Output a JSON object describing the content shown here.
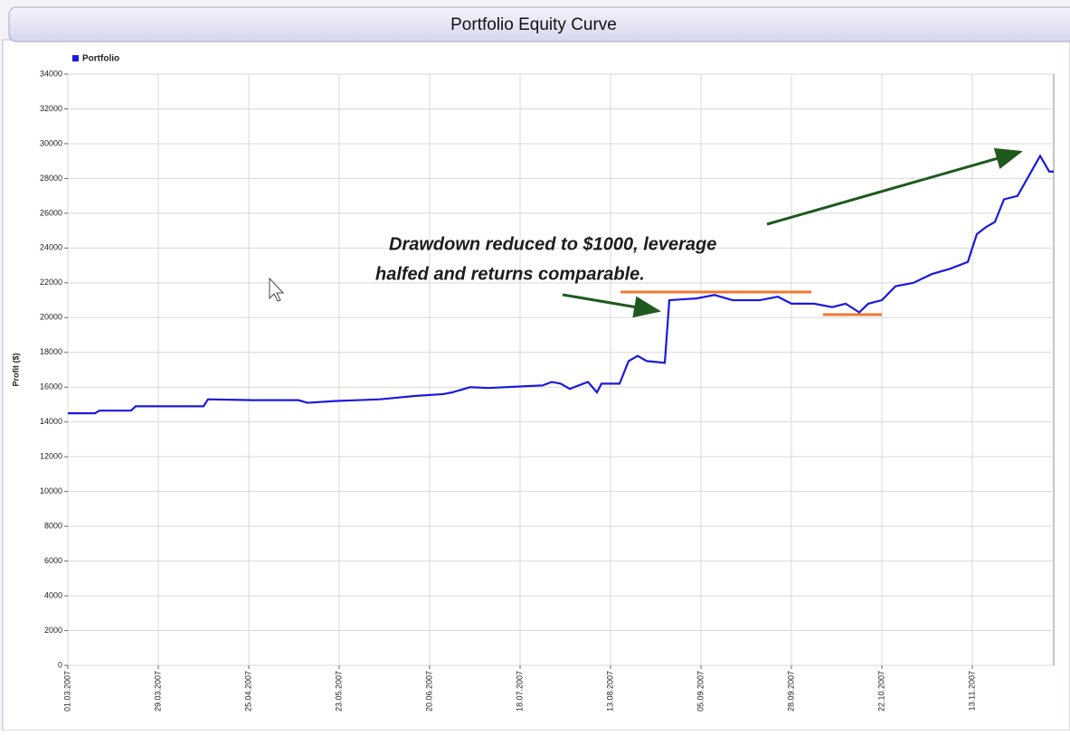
{
  "chart_data": {
    "type": "line",
    "title": "Portfolio Equity Curve",
    "y_axis_label": "Profit ($)",
    "annotation_lines": [
      "Drawdown reduced to $1000, leverage",
      "halfed and returns comparable."
    ],
    "legend": "top-left",
    "grid": true,
    "x": [
      0,
      6,
      7,
      14,
      15,
      30,
      31,
      41,
      51,
      53,
      59,
      69,
      77,
      83,
      85,
      89,
      93,
      101,
      105,
      107,
      109,
      111,
      115,
      117,
      118,
      122,
      124,
      126,
      128,
      132,
      133,
      139,
      143,
      147,
      153,
      157,
      160,
      165,
      169,
      172,
      175,
      177,
      180,
      183,
      187,
      191,
      195,
      199,
      201,
      203,
      205,
      207,
      210,
      215,
      217,
      218
    ],
    "series": [
      {
        "name": "Portfolio",
        "color": "#1a1adc",
        "values": [
          14500,
          14500,
          14650,
          14650,
          14900,
          14900,
          15300,
          15250,
          15250,
          15100,
          15200,
          15300,
          15500,
          15600,
          15700,
          16000,
          15950,
          16050,
          16100,
          16300,
          16200,
          15900,
          16300,
          15700,
          16200,
          16200,
          17500,
          17800,
          17500,
          17400,
          21000,
          21100,
          21300,
          21000,
          21000,
          21200,
          20800,
          20800,
          20600,
          20800,
          20300,
          20800,
          21000,
          21800,
          22000,
          22500,
          22800,
          23200,
          24800,
          25200,
          25500,
          26800,
          27000,
          29300,
          28400,
          28400
        ]
      }
    ],
    "xlim": [
      0,
      218
    ],
    "xticks": [
      {
        "value": 0,
        "label": "01.03.2007"
      },
      {
        "value": 20,
        "label": "29.03.2007"
      },
      {
        "value": 40,
        "label": "25.04.2007"
      },
      {
        "value": 60,
        "label": "23.05.2007"
      },
      {
        "value": 80,
        "label": "20.06.2007"
      },
      {
        "value": 100,
        "label": "18.07.2007"
      },
      {
        "value": 120,
        "label": "13.08.2007"
      },
      {
        "value": 140,
        "label": "05.09.2007"
      },
      {
        "value": 160,
        "label": "28.09.2007"
      },
      {
        "value": 180,
        "label": "22.10.2007"
      },
      {
        "value": 200,
        "label": "13.11.2007"
      }
    ],
    "ylim": [
      0,
      34000
    ],
    "yticks": [
      0,
      2000,
      4000,
      6000,
      8000,
      10000,
      12000,
      14000,
      16000,
      18000,
      20000,
      22000,
      24000,
      26000,
      28000,
      30000,
      32000,
      34000
    ]
  }
}
